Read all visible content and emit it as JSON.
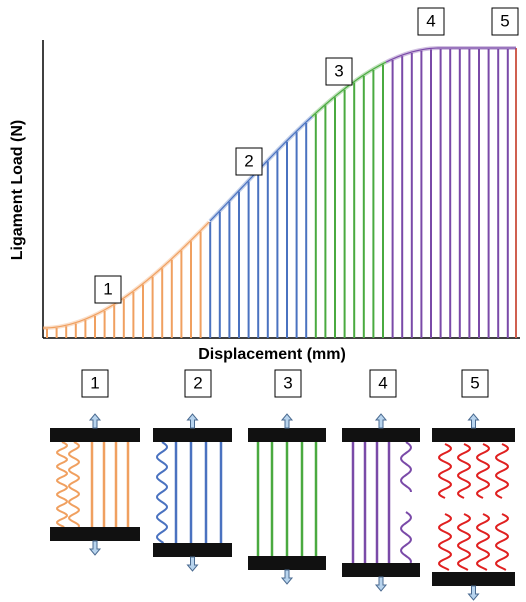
{
  "chart": {
    "y_axis_label": "Ligament Load (N)",
    "x_axis_label": "Displacement (mm)",
    "region_labels": [
      "1",
      "2",
      "3",
      "4",
      "5"
    ]
  },
  "panels": [
    {
      "label": "1"
    },
    {
      "label": "2"
    },
    {
      "label": "3"
    },
    {
      "label": "4"
    },
    {
      "label": "5"
    }
  ]
}
